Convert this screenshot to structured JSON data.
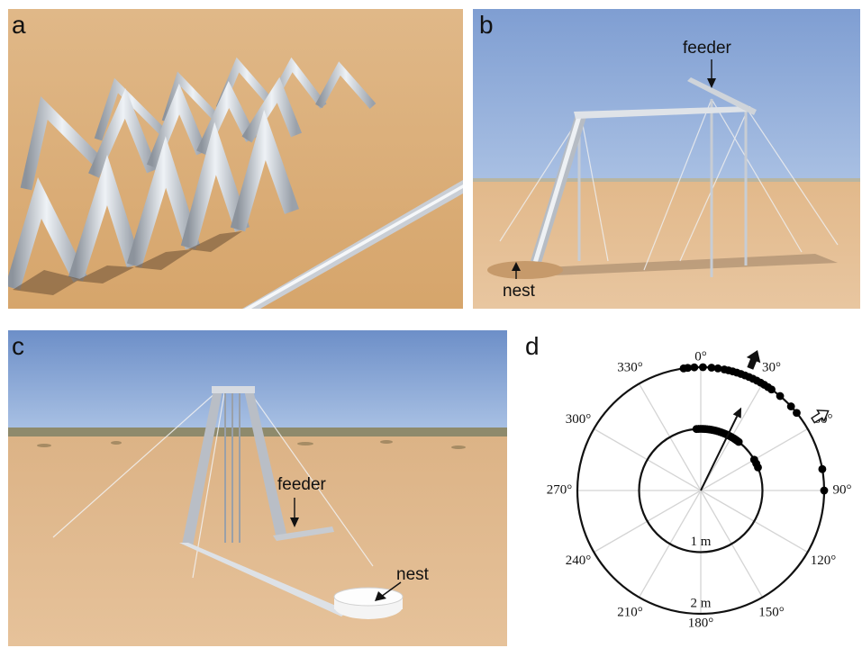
{
  "figure": {
    "panels": [
      {
        "letter": "a"
      },
      {
        "letter": "b",
        "labels": {
          "feeder": "feeder",
          "nest": "nest"
        }
      },
      {
        "letter": "c",
        "labels": {
          "feeder": "feeder",
          "nest": "nest"
        }
      },
      {
        "letter": "d"
      }
    ]
  },
  "chart_data": {
    "type": "polar-scatter",
    "angle_labels": [
      "0°",
      "30°",
      "60°",
      "90°",
      "120°",
      "150°",
      "180°",
      "210°",
      "240°",
      "270°",
      "300°",
      "330°"
    ],
    "radius_labels": [
      "1 m",
      "2 m"
    ],
    "rings_m": [
      1,
      2
    ],
    "direction_convention": "clockwise from top (0°)",
    "mean_vector": {
      "angle_deg": 26,
      "length_m": 1.5
    },
    "filled_arrow_direction_deg": 22,
    "open_arrow_direction_deg": 58,
    "series": [
      {
        "radius_m": 2,
        "angles_deg": [
          -8,
          -6,
          -3,
          1,
          5,
          8,
          11,
          13,
          15,
          17,
          19,
          21,
          23,
          25,
          27,
          29,
          31,
          33,
          35,
          40,
          47,
          51,
          80,
          90
        ]
      },
      {
        "radius_m": 1,
        "angles_deg": [
          -4,
          -2,
          0,
          2,
          4,
          6,
          8,
          10,
          12,
          14,
          16,
          18,
          20,
          22,
          24,
          26,
          28,
          30,
          32,
          34,
          36,
          38,
          60,
          64,
          68
        ]
      }
    ],
    "colors": {
      "marks": "#000000",
      "grid": "#d4d4d4"
    }
  }
}
